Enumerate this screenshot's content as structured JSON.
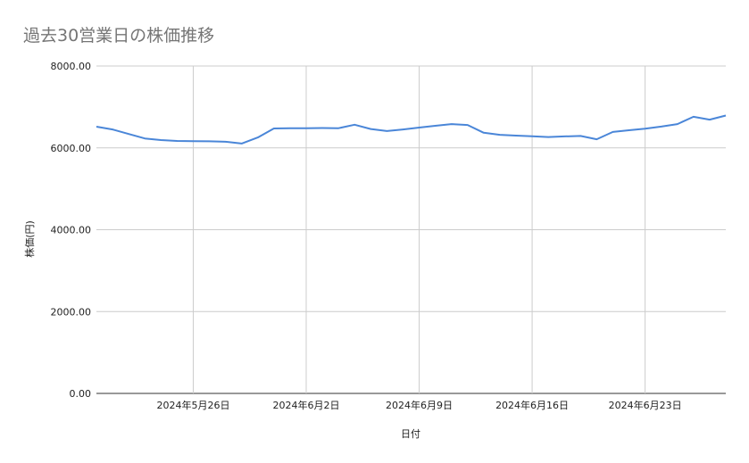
{
  "chart_data": {
    "type": "line",
    "title": "過去30営業日の株価推移",
    "xlabel": "日付",
    "ylabel": "株価(円)",
    "ylim": [
      0,
      8000
    ],
    "yticks": [
      0,
      2000,
      4000,
      6000,
      8000
    ],
    "ytick_labels": [
      "0.00",
      "2000.00",
      "4000.00",
      "6000.00",
      "8000.00"
    ],
    "xlim": [
      "2024-05-20",
      "2024-06-28"
    ],
    "xticks": [
      "2024-05-26",
      "2024-06-02",
      "2024-06-09",
      "2024-06-16",
      "2024-06-23"
    ],
    "xtick_labels": [
      "2024年5月26日",
      "2024年6月2日",
      "2024年6月9日",
      "2024年6月16日",
      "2024年6月23日"
    ],
    "grid": true,
    "line_color": "#4a86d8",
    "x": [
      "2024-05-20",
      "2024-05-21",
      "2024-05-22",
      "2024-05-23",
      "2024-05-24",
      "2024-05-25",
      "2024-05-26",
      "2024-05-27",
      "2024-05-28",
      "2024-05-29",
      "2024-05-30",
      "2024-05-31",
      "2024-06-01",
      "2024-06-02",
      "2024-06-03",
      "2024-06-04",
      "2024-06-05",
      "2024-06-06",
      "2024-06-07",
      "2024-06-08",
      "2024-06-09",
      "2024-06-10",
      "2024-06-11",
      "2024-06-12",
      "2024-06-13",
      "2024-06-14",
      "2024-06-15",
      "2024-06-16",
      "2024-06-17",
      "2024-06-18",
      "2024-06-19",
      "2024-06-20",
      "2024-06-21",
      "2024-06-22",
      "2024-06-23",
      "2024-06-24",
      "2024-06-25",
      "2024-06-26",
      "2024-06-27",
      "2024-06-28"
    ],
    "values": [
      6518,
      6450,
      6340,
      6230,
      6190,
      6170,
      6165,
      6160,
      6150,
      6105,
      6255,
      6475,
      6480,
      6480,
      6485,
      6480,
      6565,
      6460,
      6410,
      6450,
      6495,
      6540,
      6580,
      6560,
      6370,
      6320,
      6300,
      6285,
      6265,
      6280,
      6290,
      6210,
      6390,
      6430,
      6470,
      6520,
      6580,
      6760,
      6690,
      6790
    ]
  }
}
